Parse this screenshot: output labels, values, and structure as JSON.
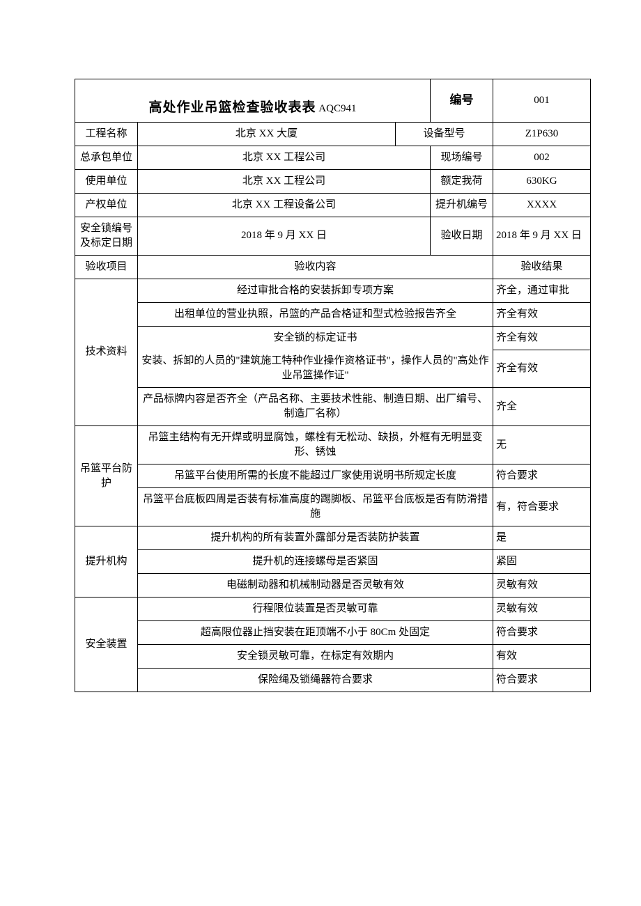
{
  "header": {
    "title_main": "高处作业吊篮检查验收表表",
    "title_code": "AQC941",
    "bianhao_label": "编号",
    "bianhao_value": "001"
  },
  "meta_rows": [
    {
      "l1": "工程名称",
      "v1": "北京 XX 大厦",
      "l2": "设备型号",
      "v2": "Z1P630"
    },
    {
      "l1": "总承包单位",
      "v1": "北京 XX 工程公司",
      "l2": "现场编号",
      "v2": "002"
    },
    {
      "l1": "使用单位",
      "v1": "北京 XX 工程公司",
      "l2": "额定我荷",
      "v2": "630KG"
    },
    {
      "l1": "产权单位",
      "v1": "北京 XX 工程设备公司",
      "l2": "提升机编号",
      "v2": "XXXX"
    },
    {
      "l1": "安全锁编号及标定日期",
      "v1": "2018 年 9 月 XX 日",
      "l2": "验收日期",
      "v2": "2018 年 9 月 XX 日"
    }
  ],
  "columns": {
    "item": "验收项目",
    "content": "验收内容",
    "result": "验收结果"
  },
  "sections": [
    {
      "name": "技术资料",
      "rows": [
        {
          "content": "经过审批合格的安装拆卸专项方案",
          "result": "齐全，通过审批"
        },
        {
          "content": "出租单位的营业执照，吊篮的产品合格证和型式检验报告齐全",
          "result": "齐全有效"
        },
        {
          "content": "安全锁的标定证书",
          "result": "齐全有效",
          "nobottom": true
        },
        {
          "content": "安装、拆卸的人员的\"建筑施工特种作业操作资格证书\"，操作人员的\"高处作业吊篮操作证\"",
          "result": "齐全有效",
          "notop": true
        },
        {
          "content": "产品标牌内容是否齐全（产品名称、主要技术性能、制造日期、出厂编号、制造厂名称）",
          "result": "齐全"
        }
      ]
    },
    {
      "name": "吊篮平台防护",
      "rows": [
        {
          "content": "吊篮主结构有无开焊或明显腐蚀，螺栓有无松动、缺损，外框有无明显变形、锈蚀",
          "result": "无"
        },
        {
          "content": "吊篮平台使用所需的长度不能超过厂家使用说明书所规定长度",
          "result": "符合要求"
        },
        {
          "content": "吊篮平台底板四周是否装有标准高度的踢脚板、吊篮平台底板是否有防滑措施",
          "result": "有，符合要求"
        }
      ]
    },
    {
      "name": "提升机构",
      "rows": [
        {
          "content": "提升机构的所有装置外露部分是否装防护装置",
          "result": "是"
        },
        {
          "content": "提升机的连接螺母是否紧固",
          "result": "紧固"
        },
        {
          "content": "电磁制动器和机械制动器是否灵敏有效",
          "result": "灵敏有效"
        }
      ]
    },
    {
      "name": "安全装置",
      "rows": [
        {
          "content": "行程限位装置是否灵敏可靠",
          "result": "灵敏有效"
        },
        {
          "content": "超高限位器止挡安装在距顶端不小于 80Cm 处固定",
          "result": "符合要求"
        },
        {
          "content": "安全锁灵敏可靠，在标定有效期内",
          "result": "有效"
        },
        {
          "content": "保险绳及锁绳器符合要求",
          "result": "符合要求"
        }
      ]
    }
  ]
}
